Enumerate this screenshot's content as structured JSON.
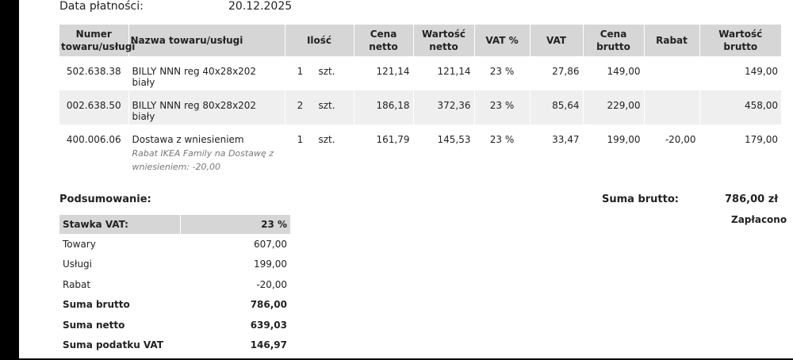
{
  "header": {
    "payment_date_label": "Data płatności:",
    "payment_date_value": "20.12.2025"
  },
  "items_table": {
    "columns": [
      "Numer towaru/usługi",
      "Nazwa towaru/usługi",
      "Ilość",
      "Cena netto",
      "Wartość netto",
      "VAT %",
      "VAT",
      "Cena brutto",
      "Rabat",
      "Wartość brutto"
    ],
    "rows": [
      {
        "number": "502.638.38",
        "name": "BILLY NNN reg 40x28x202 biały",
        "note": "",
        "qty": "1",
        "unit": "szt.",
        "net_price": "121,14",
        "net_value": "121,14",
        "vat_pct": "23 %",
        "vat": "27,86",
        "gross_price": "149,00",
        "discount": "",
        "gross_value": "149,00"
      },
      {
        "number": "002.638.50",
        "name": "BILLY NNN reg 80x28x202 biały",
        "note": "",
        "qty": "2",
        "unit": "szt.",
        "net_price": "186,18",
        "net_value": "372,36",
        "vat_pct": "23 %",
        "vat": "85,64",
        "gross_price": "229,00",
        "discount": "",
        "gross_value": "458,00"
      },
      {
        "number": "400.006.06",
        "name": "Dostawa z wniesieniem",
        "note": "Rabat IKEA Family na Dostawę z wniesieniem: -20,00",
        "qty": "1",
        "unit": "szt.",
        "net_price": "161,79",
        "net_value": "145,53",
        "vat_pct": "23 %",
        "vat": "33,47",
        "gross_price": "199,00",
        "discount": "-20,00",
        "gross_value": "179,00"
      }
    ]
  },
  "summary": {
    "title": "Podsumowanie:",
    "gross_total_label": "Suma brutto:",
    "gross_total_value": "786,00 zł",
    "paid_label": "Zapłacono"
  },
  "vat_table": {
    "header_label": "Stawka VAT:",
    "header_value": "23 %",
    "rows": [
      {
        "label": "Towary",
        "value": "607,00",
        "bold": false
      },
      {
        "label": "Usługi",
        "value": "199,00",
        "bold": false
      },
      {
        "label": "Rabat",
        "value": "-20,00",
        "bold": false
      },
      {
        "label": "Suma brutto",
        "value": "786,00",
        "bold": true
      },
      {
        "label": "Suma netto",
        "value": "639,03",
        "bold": true
      },
      {
        "label": "Suma podatku VAT",
        "value": "146,97",
        "bold": true
      }
    ]
  }
}
